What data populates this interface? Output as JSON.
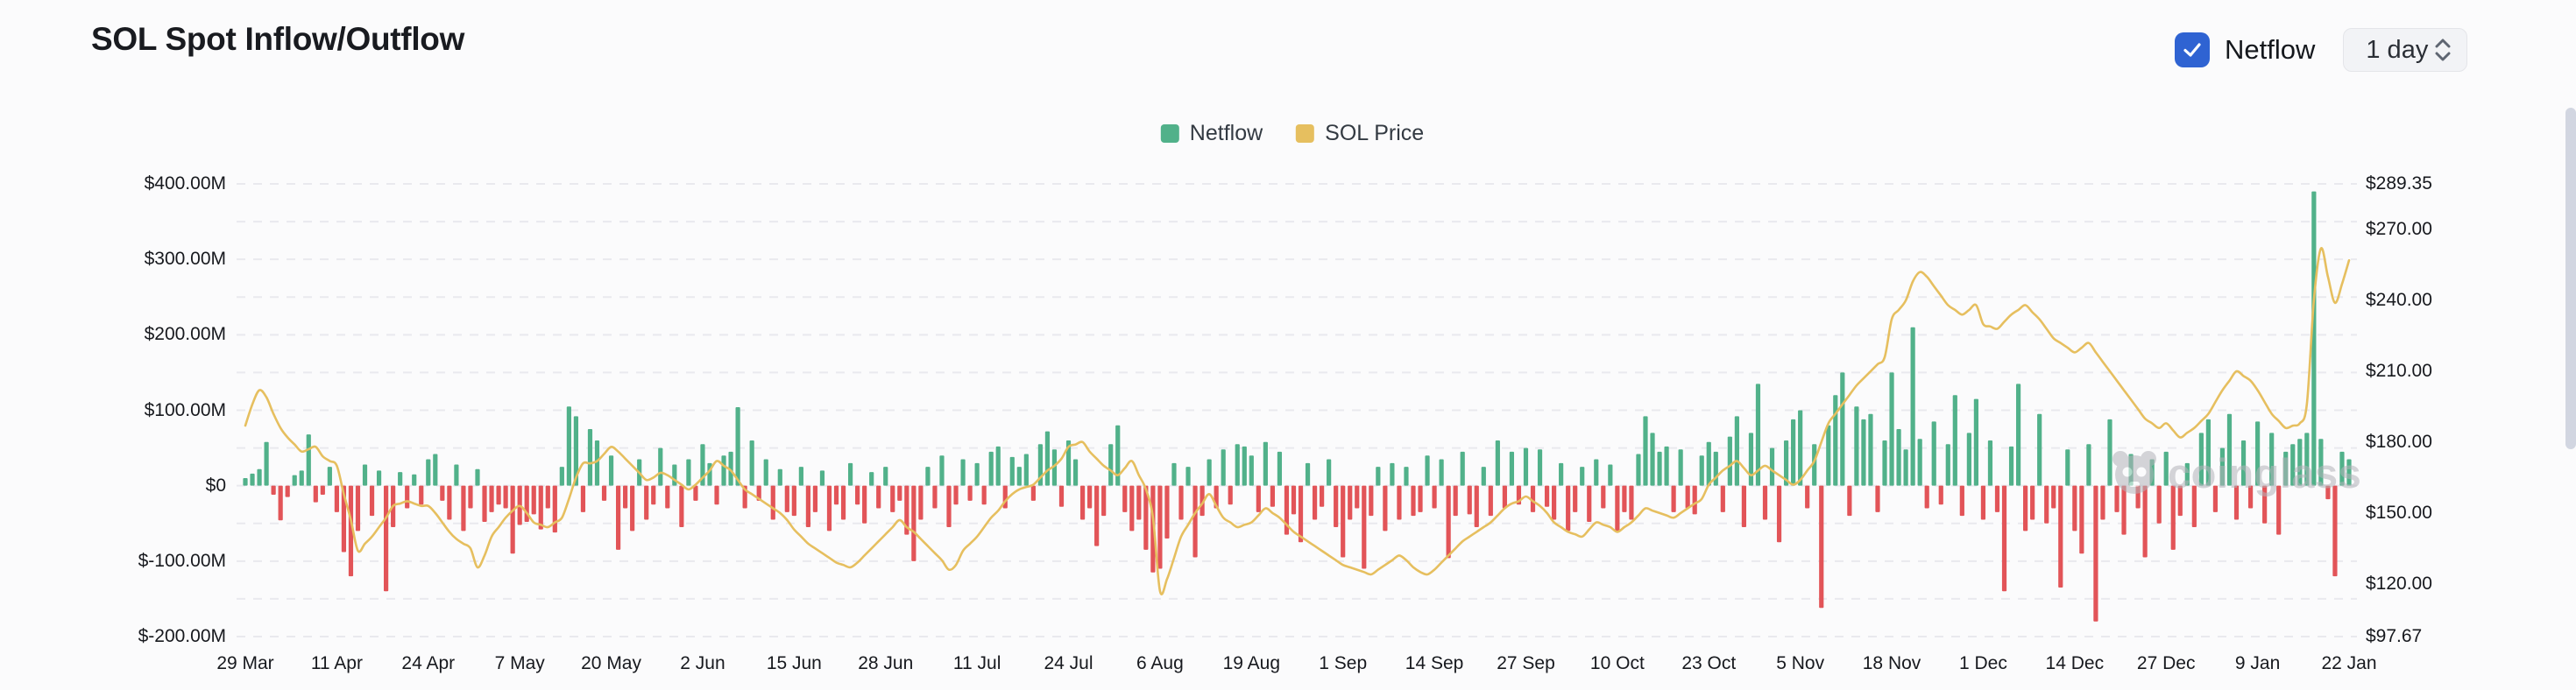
{
  "header": {
    "title": "SOL Spot Inflow/Outflow",
    "netflow_toggle_label": "Netflow",
    "netflow_checkbox_checked": true,
    "interval_select_value": "1 day"
  },
  "legend": [
    {
      "label": "Netflow",
      "color": "#51b18a"
    },
    {
      "label": "SOL Price",
      "color": "#e6bf5f"
    }
  ],
  "watermark": {
    "text": "coinglass"
  },
  "colors": {
    "bar_positive": "#51b18a",
    "bar_negative": "#e25458",
    "price_line": "#e6bf5f",
    "grid": "#e9e9ee",
    "checkbox_blue": "#2f63d2",
    "background": "#fbfbfc"
  },
  "chart_data": {
    "type": "bar+line",
    "title": "SOL Spot Inflow/Outflow",
    "start_label": "29 Mar",
    "end_label": "22 Jan",
    "x_tick_labels": [
      "29 Mar",
      "11 Apr",
      "24 Apr",
      "7 May",
      "20 May",
      "2 Jun",
      "15 Jun",
      "28 Jun",
      "11 Jul",
      "24 Jul",
      "6 Aug",
      "19 Aug",
      "1 Sep",
      "14 Sep",
      "27 Sep",
      "10 Oct",
      "23 Oct",
      "5 Nov",
      "18 Nov",
      "1 Dec",
      "14 Dec",
      "27 Dec",
      "9 Jan",
      "22 Jan"
    ],
    "days_per_tick": 13,
    "left_axis": {
      "name": "Netflow (USD)",
      "labels": [
        "$400.00M",
        "$300.00M",
        "$200.00M",
        "$100.00M",
        "$0",
        "$-100.00M",
        "$-200.00M"
      ],
      "max": 400,
      "min": -200,
      "unit": "USD millions",
      "grid": "dashed"
    },
    "right_axis": {
      "name": "SOL Price (USD)",
      "labels": [
        "$289.35",
        "$270.00",
        "$240.00",
        "$210.00",
        "$180.00",
        "$150.00",
        "$120.00",
        "$97.67"
      ],
      "max": 289.35,
      "min": 97.67,
      "unit": "USD"
    },
    "series": [
      {
        "name": "Netflow",
        "type": "bar",
        "axis": "left",
        "unit": "USD millions",
        "values": [
          10,
          16,
          22,
          58,
          -12,
          -46,
          -15,
          14,
          20,
          68,
          -22,
          -12,
          25,
          -35,
          -88,
          -120,
          -60,
          28,
          -40,
          20,
          -140,
          -55,
          18,
          -30,
          15,
          -25,
          35,
          42,
          -20,
          -45,
          28,
          -60,
          -30,
          22,
          -48,
          -35,
          -25,
          -30,
          -90,
          -52,
          -48,
          -38,
          -58,
          -30,
          -62,
          25,
          105,
          92,
          -35,
          75,
          60,
          -20,
          40,
          -85,
          -30,
          -60,
          35,
          -45,
          -25,
          50,
          -30,
          28,
          -55,
          35,
          -20,
          55,
          30,
          -25,
          40,
          45,
          104,
          -30,
          60,
          -20,
          35,
          -45,
          22,
          -35,
          -40,
          25,
          -55,
          -35,
          20,
          -60,
          -25,
          -45,
          30,
          -25,
          -50,
          18,
          -30,
          25,
          -35,
          -20,
          -65,
          -100,
          -45,
          25,
          -30,
          40,
          -55,
          -25,
          35,
          -20,
          30,
          -25,
          45,
          52,
          -30,
          38,
          25,
          42,
          -20,
          55,
          72,
          48,
          -28,
          60,
          35,
          -45,
          -30,
          -80,
          -40,
          55,
          80,
          -35,
          -60,
          -45,
          -85,
          -115,
          -110,
          -70,
          30,
          -45,
          25,
          -95,
          -40,
          35,
          -30,
          48,
          -25,
          55,
          52,
          40,
          -35,
          58,
          -28,
          45,
          -65,
          -38,
          -75,
          30,
          -45,
          -28,
          35,
          -55,
          -95,
          -45,
          -30,
          -110,
          -40,
          25,
          -60,
          30,
          -45,
          25,
          -40,
          -35,
          40,
          -30,
          35,
          -96,
          -40,
          45,
          -38,
          -55,
          25,
          -40,
          60,
          -30,
          45,
          -25,
          50,
          -35,
          48,
          -28,
          -45,
          30,
          -60,
          -35,
          25,
          -48,
          35,
          -30,
          28,
          -60,
          -35,
          -45,
          42,
          92,
          70,
          45,
          52,
          -35,
          48,
          -30,
          -38,
          40,
          58,
          45,
          -35,
          65,
          92,
          -55,
          70,
          135,
          -45,
          50,
          -75,
          60,
          88,
          100,
          -30,
          55,
          -162,
          80,
          120,
          150,
          -40,
          105,
          88,
          95,
          -35,
          60,
          150,
          75,
          48,
          210,
          62,
          -30,
          85,
          -25,
          55,
          120,
          -40,
          70,
          115,
          -45,
          60,
          -35,
          -140,
          52,
          135,
          -60,
          -45,
          95,
          -50,
          -30,
          -135,
          48,
          -60,
          -90,
          55,
          -180,
          -45,
          88,
          -35,
          -65,
          42,
          -30,
          -95,
          35,
          -50,
          45,
          -85,
          -40,
          30,
          -55,
          70,
          88,
          -35,
          50,
          95,
          -45,
          60,
          -30,
          85,
          -50,
          70,
          -65,
          45,
          55,
          62,
          70,
          390,
          62,
          -18,
          -120,
          45,
          35
        ]
      },
      {
        "name": "SOL Price",
        "type": "line",
        "axis": "right",
        "unit": "USD",
        "values": [
          187,
          196,
          202,
          199,
          192,
          186,
          182,
          179,
          176,
          177,
          178,
          174,
          172,
          170,
          158,
          147,
          134,
          137,
          140,
          144,
          148,
          153,
          154,
          155,
          154,
          153,
          153,
          150,
          146,
          142,
          139,
          137,
          135,
          127,
          132,
          140,
          144,
          148,
          151,
          153,
          150,
          146,
          145,
          144,
          146,
          148,
          156,
          165,
          171,
          171,
          172,
          175,
          178,
          176,
          173,
          170,
          167,
          164,
          165,
          167,
          166,
          164,
          162,
          160,
          162,
          165,
          168,
          172,
          170,
          168,
          164,
          160,
          158,
          156,
          154,
          152,
          150,
          147,
          143,
          140,
          137,
          135,
          133,
          131,
          129,
          128,
          127,
          129,
          132,
          135,
          138,
          141,
          144,
          147,
          144,
          142,
          139,
          136,
          133,
          130,
          126,
          128,
          134,
          137,
          140,
          144,
          148,
          151,
          155,
          158,
          160,
          161,
          162,
          165,
          168,
          170,
          173,
          178,
          179,
          180,
          176,
          173,
          170,
          168,
          166,
          169,
          172,
          166,
          160,
          148,
          117,
          122,
          131,
          140,
          145,
          150,
          154,
          158,
          153,
          148,
          146,
          144,
          145,
          146,
          149,
          152,
          150,
          148,
          145,
          142,
          140,
          138,
          136,
          134,
          132,
          130,
          128,
          127,
          126,
          125,
          124,
          126,
          128,
          130,
          132,
          130,
          127,
          125,
          124,
          126,
          129,
          132,
          135,
          138,
          140,
          142,
          144,
          146,
          149,
          152,
          154,
          155,
          157,
          155,
          153,
          150,
          146,
          144,
          142,
          141,
          140,
          143,
          146,
          145,
          144,
          142,
          144,
          146,
          149,
          152,
          151,
          150,
          149,
          148,
          150,
          152,
          154,
          156,
          162,
          165,
          168,
          170,
          172,
          169,
          166,
          168,
          170,
          168,
          166,
          164,
          162,
          164,
          168,
          172,
          180,
          188,
          192,
          196,
          200,
          204,
          207,
          210,
          213,
          216,
          232,
          236,
          240,
          248,
          252,
          250,
          246,
          242,
          238,
          236,
          234,
          236,
          238,
          230,
          229,
          228,
          231,
          234,
          236,
          238,
          235,
          232,
          228,
          224,
          222,
          220,
          218,
          220,
          222,
          218,
          214,
          210,
          206,
          202,
          198,
          194,
          190,
          188,
          186,
          188,
          185,
          182,
          184,
          186,
          189,
          192,
          197,
          202,
          206,
          210,
          208,
          206,
          202,
          197,
          192,
          189,
          186,
          187,
          188,
          196,
          240,
          262,
          250,
          239,
          247,
          257
        ]
      }
    ]
  }
}
